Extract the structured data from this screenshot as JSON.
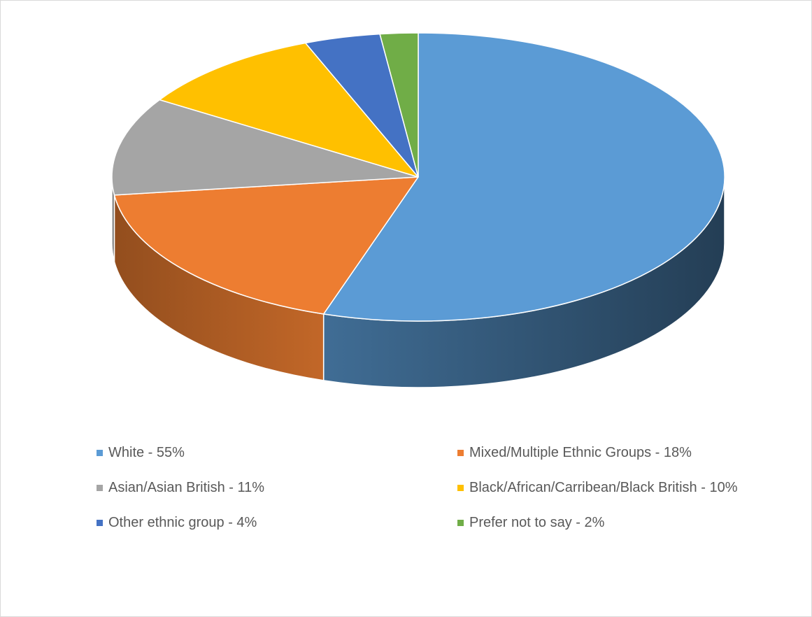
{
  "chart_data": {
    "type": "pie",
    "style": "3d",
    "legend_position": "bottom",
    "title": "",
    "slices": [
      {
        "label": "White - 55%",
        "value": 55,
        "color": "#5b9bd5"
      },
      {
        "label": "Mixed/Multiple Ethnic Groups - 18%",
        "value": 18,
        "color": "#ed7d31"
      },
      {
        "label": "Asian/Asian British - 11%",
        "value": 11,
        "color": "#a5a5a5"
      },
      {
        "label": "Black/African/Carribean/Black British - 10%",
        "value": 10,
        "color": "#ffc000"
      },
      {
        "label": "Other ethnic group - 4%",
        "value": 4,
        "color": "#4472c4"
      },
      {
        "label": "Prefer not to say - 2%",
        "value": 2,
        "color": "#70ad47"
      }
    ]
  }
}
